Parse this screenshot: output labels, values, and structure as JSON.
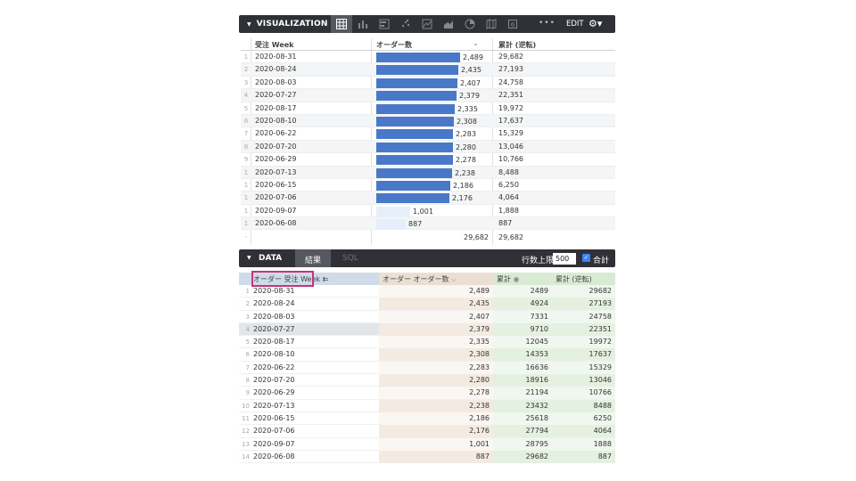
{
  "viz": {
    "title": "VISUALIZATION",
    "edit_label": "EDIT",
    "more_label": "•••",
    "icons": [
      "table-icon",
      "bar-chart-icon",
      "column-chart-icon",
      "scatter-icon",
      "line-chart-icon",
      "area-chart-icon",
      "pie-chart-icon",
      "map-icon",
      "single-value-icon"
    ],
    "headers": {
      "date": "受注 Week",
      "orders": "オーダー数",
      "cumulative": "累計 (逆転)"
    },
    "rows": [
      {
        "idx": "1",
        "date": "2020-08-31",
        "orders": "2,489",
        "cum": "29,682"
      },
      {
        "idx": "2",
        "date": "2020-08-24",
        "orders": "2,435",
        "cum": "27,193"
      },
      {
        "idx": "3",
        "date": "2020-08-03",
        "orders": "2,407",
        "cum": "24,758"
      },
      {
        "idx": "4",
        "date": "2020-07-27",
        "orders": "2,379",
        "cum": "22,351"
      },
      {
        "idx": "5",
        "date": "2020-08-17",
        "orders": "2,335",
        "cum": "19,972"
      },
      {
        "idx": "6",
        "date": "2020-08-10",
        "orders": "2,308",
        "cum": "17,637"
      },
      {
        "idx": "7",
        "date": "2020-06-22",
        "orders": "2,283",
        "cum": "15,329"
      },
      {
        "idx": "8",
        "date": "2020-07-20",
        "orders": "2,280",
        "cum": "13,046"
      },
      {
        "idx": "9",
        "date": "2020-06-29",
        "orders": "2,278",
        "cum": "10,766"
      },
      {
        "idx": "1",
        "date": "2020-07-13",
        "orders": "2,238",
        "cum": "8,488"
      },
      {
        "idx": "1",
        "date": "2020-06-15",
        "orders": "2,186",
        "cum": "6,250"
      },
      {
        "idx": "1",
        "date": "2020-07-06",
        "orders": "2,176",
        "cum": "4,064"
      },
      {
        "idx": "1",
        "date": "2020-09-07",
        "orders": "1,001",
        "cum": "1,888"
      },
      {
        "idx": "1",
        "date": "2020-06-08",
        "orders": "887",
        "cum": "887"
      }
    ],
    "totals": {
      "idx": "-",
      "orders": "29,682",
      "cum": "29,682"
    }
  },
  "data": {
    "title": "DATA",
    "tab_results": "結果",
    "tab_sql": "SQL",
    "row_limit_label": "行数上限",
    "row_limit_value": "500",
    "checkbox_mark": "✓",
    "totals_label": "合計",
    "headers": {
      "date": "オーダー 受注 Week",
      "orders": "オーダー オーダー数",
      "cumulative": "累計",
      "reverse": "累計 (逆転)"
    },
    "rows": [
      {
        "idx": "1",
        "date": "2020-08-31",
        "orders": "2,489",
        "cum": "2489",
        "rev": "29682"
      },
      {
        "idx": "2",
        "date": "2020-08-24",
        "orders": "2,435",
        "cum": "4924",
        "rev": "27193"
      },
      {
        "idx": "3",
        "date": "2020-08-03",
        "orders": "2,407",
        "cum": "7331",
        "rev": "24758"
      },
      {
        "idx": "4",
        "date": "2020-07-27",
        "orders": "2,379",
        "cum": "9710",
        "rev": "22351"
      },
      {
        "idx": "5",
        "date": "2020-08-17",
        "orders": "2,335",
        "cum": "12045",
        "rev": "19972"
      },
      {
        "idx": "6",
        "date": "2020-08-10",
        "orders": "2,308",
        "cum": "14353",
        "rev": "17637"
      },
      {
        "idx": "7",
        "date": "2020-06-22",
        "orders": "2,283",
        "cum": "16636",
        "rev": "15329"
      },
      {
        "idx": "8",
        "date": "2020-07-20",
        "orders": "2,280",
        "cum": "18916",
        "rev": "13046"
      },
      {
        "idx": "9",
        "date": "2020-06-29",
        "orders": "2,278",
        "cum": "21194",
        "rev": "10766"
      },
      {
        "idx": "10",
        "date": "2020-07-13",
        "orders": "2,238",
        "cum": "23432",
        "rev": "8488"
      },
      {
        "idx": "11",
        "date": "2020-06-15",
        "orders": "2,186",
        "cum": "25618",
        "rev": "6250"
      },
      {
        "idx": "12",
        "date": "2020-07-06",
        "orders": "2,176",
        "cum": "27794",
        "rev": "4064"
      },
      {
        "idx": "13",
        "date": "2020-09-07",
        "orders": "1,001",
        "cum": "28795",
        "rev": "1888"
      },
      {
        "idx": "14",
        "date": "2020-06-08",
        "orders": "887",
        "cum": "29682",
        "rev": "887"
      }
    ]
  },
  "colors": {
    "toolbar": "#2f3136",
    "bar": "#4a78c8",
    "highlight": "#c8327a",
    "checkbox": "#3b82f6"
  }
}
